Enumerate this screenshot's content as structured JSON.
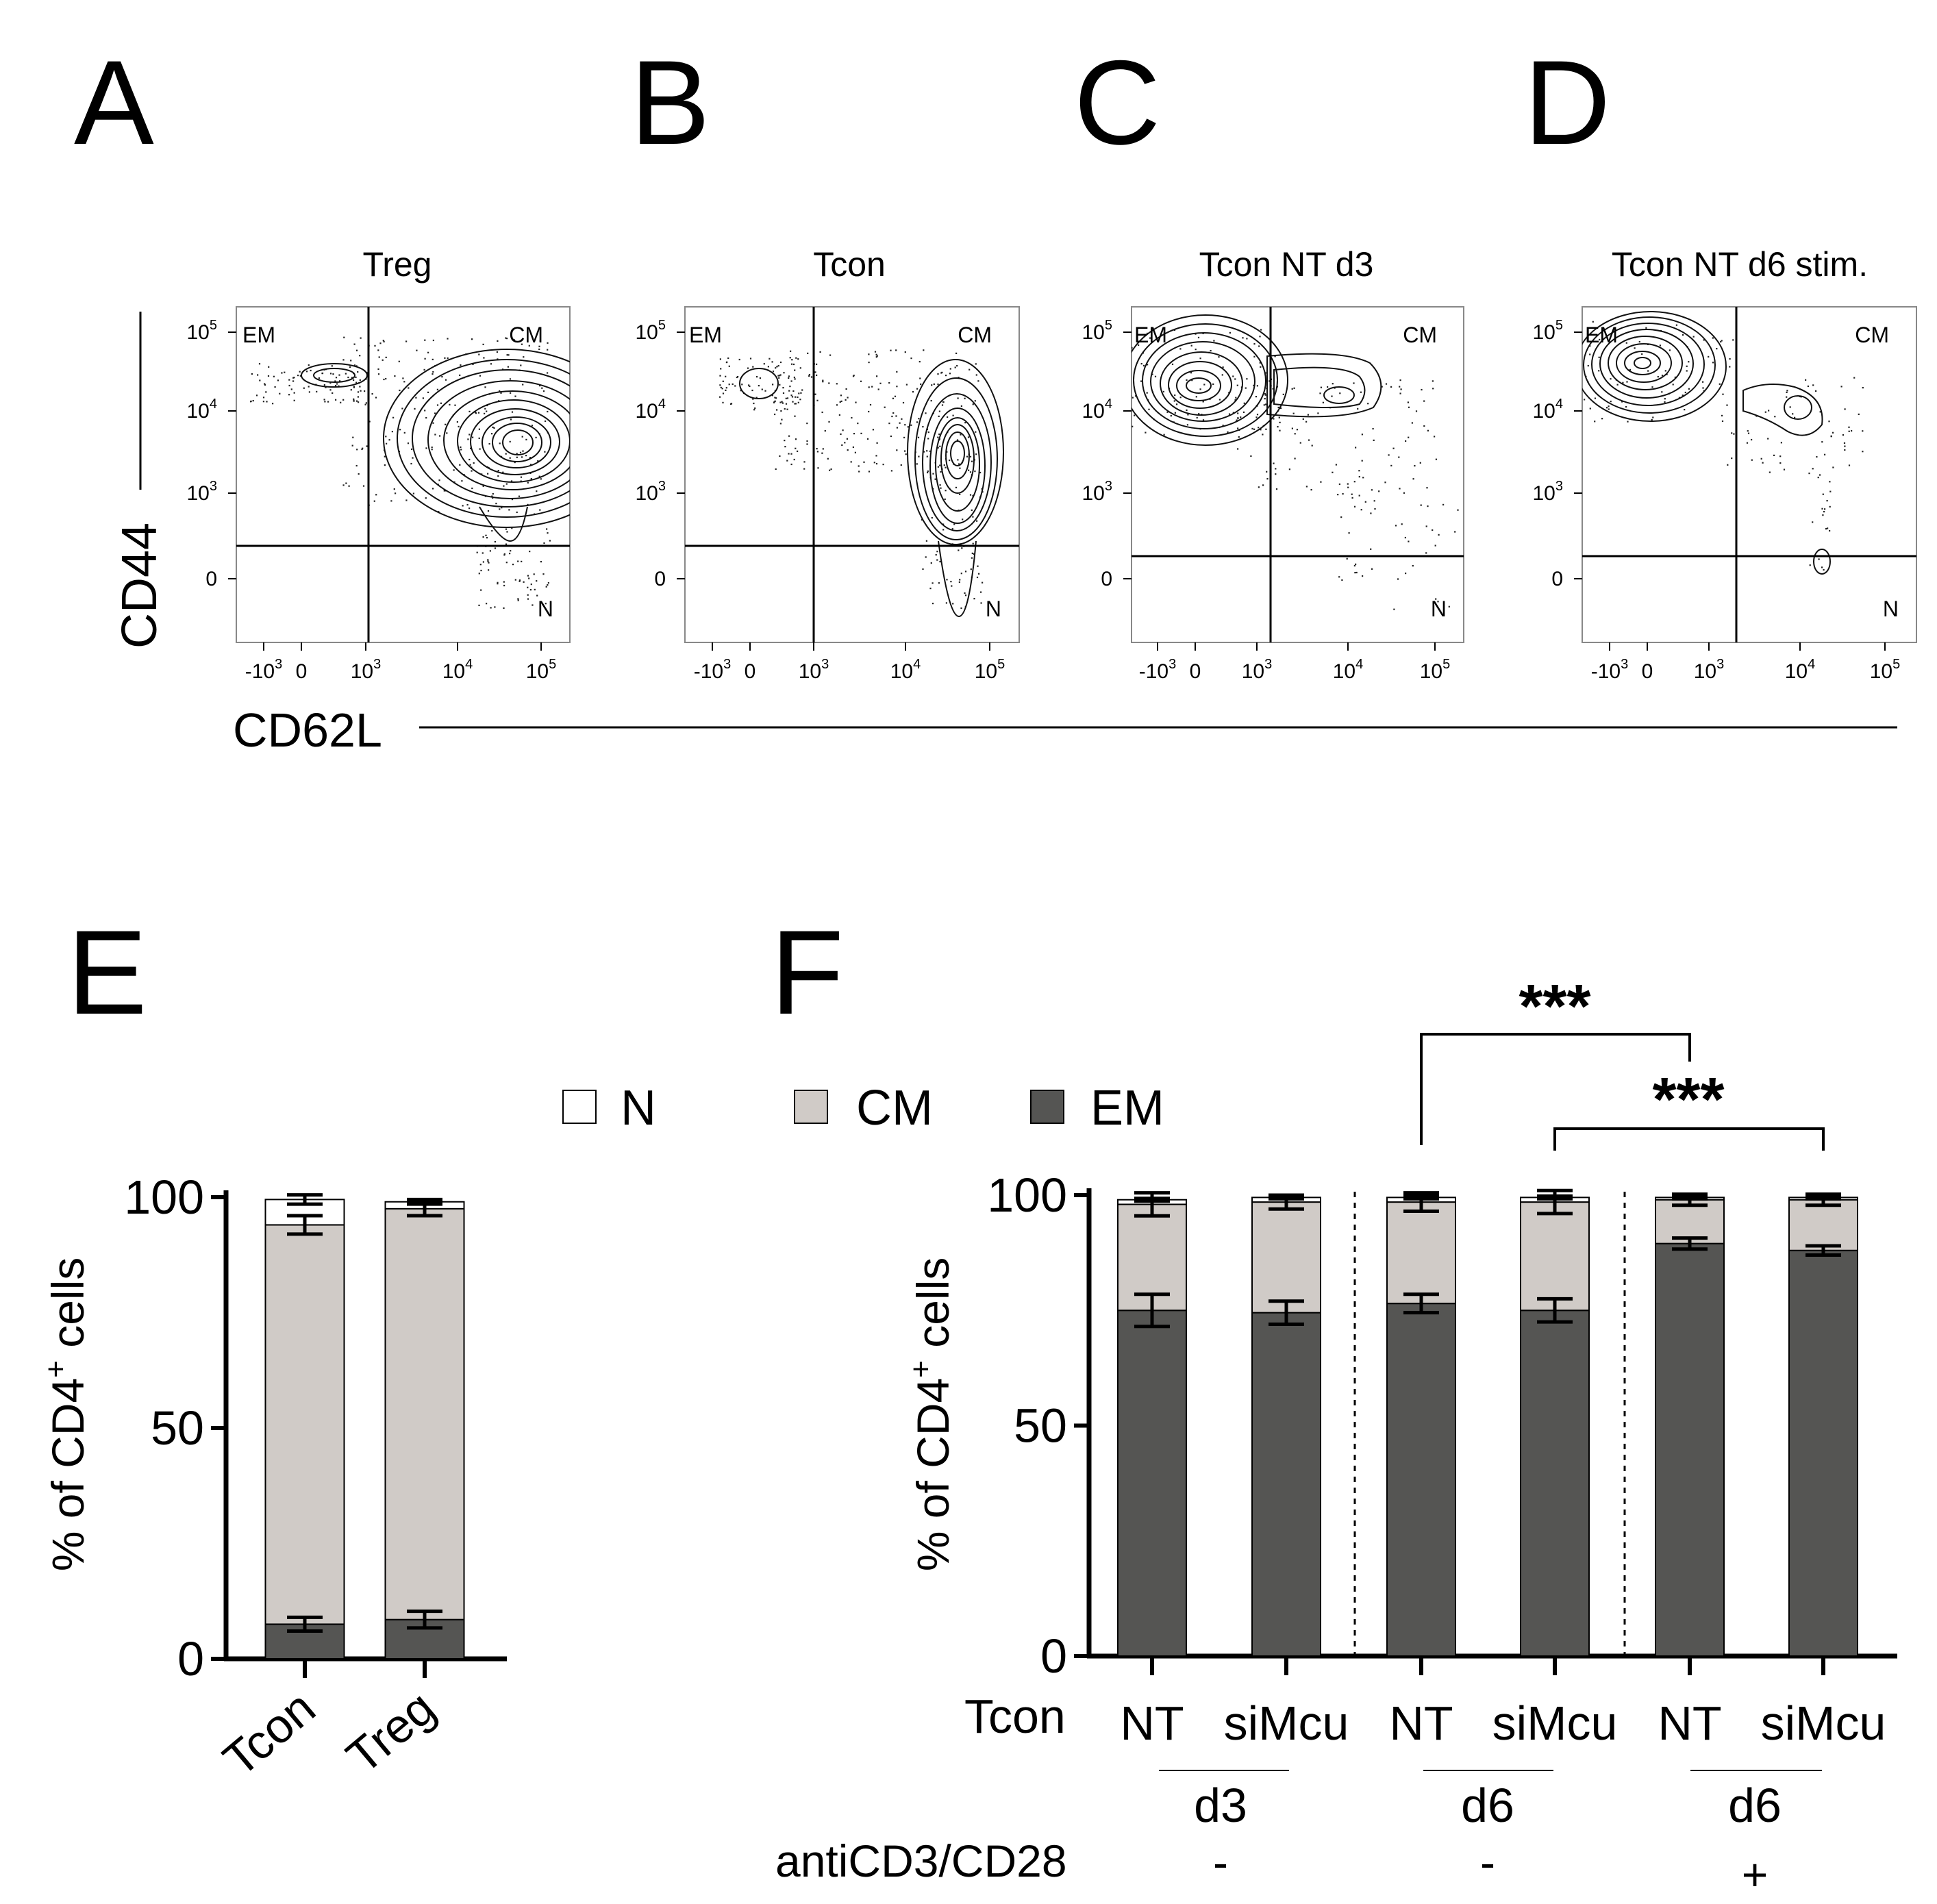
{
  "panels": {
    "A": {
      "letter": "A",
      "title": "Treg",
      "quadrants": {
        "em": "EM",
        "cm": "CM",
        "n": "N"
      }
    },
    "B": {
      "letter": "B",
      "title": "Tcon",
      "quadrants": {
        "em": "EM",
        "cm": "CM",
        "n": "N"
      }
    },
    "C": {
      "letter": "C",
      "title": "Tcon NT d3",
      "quadrants": {
        "em": "EM",
        "cm": "CM",
        "n": "N"
      }
    },
    "D": {
      "letter": "D",
      "title": "Tcon NT d6 stim.",
      "quadrants": {
        "em": "EM",
        "cm": "CM",
        "n": "N"
      }
    },
    "E": {
      "letter": "E"
    },
    "F": {
      "letter": "F"
    }
  },
  "flow_axes": {
    "ylabel": "CD44",
    "xlabel": "CD62L",
    "y_ticks": [
      "10",
      "10",
      "10",
      "0"
    ],
    "y_tick_exps": [
      "5",
      "4",
      "3",
      ""
    ],
    "x_ticks": [
      "-10",
      "0",
      "10",
      "10",
      "10"
    ],
    "x_tick_exps": [
      "3",
      "",
      "3",
      "4",
      "5"
    ]
  },
  "legend": {
    "items": [
      {
        "label": "N",
        "color": "#ffffff"
      },
      {
        "label": "CM",
        "color": "#d0cbc7"
      },
      {
        "label": "EM",
        "color": "#555553"
      }
    ]
  },
  "panelE_ylabel_main": "% of CD4",
  "panelE_ylabel_sup": "+",
  "panelE_ylabel_tail": " cells",
  "panelF_ylabel_main": "% of CD4",
  "panelF_ylabel_sup": "+",
  "panelF_ylabel_tail": " cells",
  "panelF_labels": {
    "row_label": "Tcon",
    "treatments": [
      "NT",
      "siMcu",
      "NT",
      "siMcu",
      "NT",
      "siMcu"
    ],
    "days": [
      "d3",
      "d6",
      "d6"
    ],
    "stim_label": "antiCD3/CD28",
    "stim": [
      "-",
      "-",
      "+"
    ]
  },
  "significance": [
    {
      "label": "***",
      "from": "NT d6",
      "to": "NT d6 +"
    },
    {
      "label": "***",
      "from": "siMcu d6",
      "to": "siMcu d6 +"
    }
  ],
  "chart_data": [
    {
      "type": "bar",
      "stacked": true,
      "panel": "E",
      "categories": [
        "Tcon",
        "Treg"
      ],
      "series": [
        {
          "name": "EM",
          "values": [
            7.5,
            8.5
          ],
          "errors": [
            1.5,
            1.8
          ],
          "color": "#555553"
        },
        {
          "name": "CM",
          "values": [
            86.5,
            89.0
          ],
          "errors": [
            2.0,
            1.5
          ],
          "color": "#d0cbc7"
        },
        {
          "name": "N",
          "values": [
            5.5,
            1.5
          ],
          "errors": [
            1.0,
            0.5
          ],
          "color": "#ffffff"
        }
      ],
      "ylim": [
        0,
        100
      ],
      "yticks": [
        0,
        50,
        100
      ]
    },
    {
      "type": "bar",
      "stacked": true,
      "panel": "F",
      "categories": [
        "NT",
        "siMcu",
        "NT",
        "siMcu",
        "NT",
        "siMcu"
      ],
      "series": [
        {
          "name": "EM",
          "values": [
            75.0,
            74.5,
            76.5,
            75.0,
            89.5,
            88.0
          ],
          "errors": [
            3.5,
            2.5,
            2.0,
            2.5,
            1.2,
            1.0
          ],
          "color": "#555553"
        },
        {
          "name": "CM",
          "values": [
            23.0,
            24.0,
            22.0,
            23.5,
            9.5,
            11.0
          ],
          "errors": [
            2.5,
            1.5,
            2.0,
            2.5,
            1.2,
            1.2
          ],
          "color": "#d0cbc7"
        },
        {
          "name": "N",
          "values": [
            1.0,
            1.0,
            1.0,
            1.0,
            0.5,
            0.5
          ],
          "errors": [
            0.3,
            0.3,
            0.3,
            0.3,
            0.3,
            0.3
          ],
          "color": "#ffffff"
        }
      ],
      "ylim": [
        0,
        100
      ],
      "yticks": [
        0,
        50,
        100
      ]
    }
  ]
}
